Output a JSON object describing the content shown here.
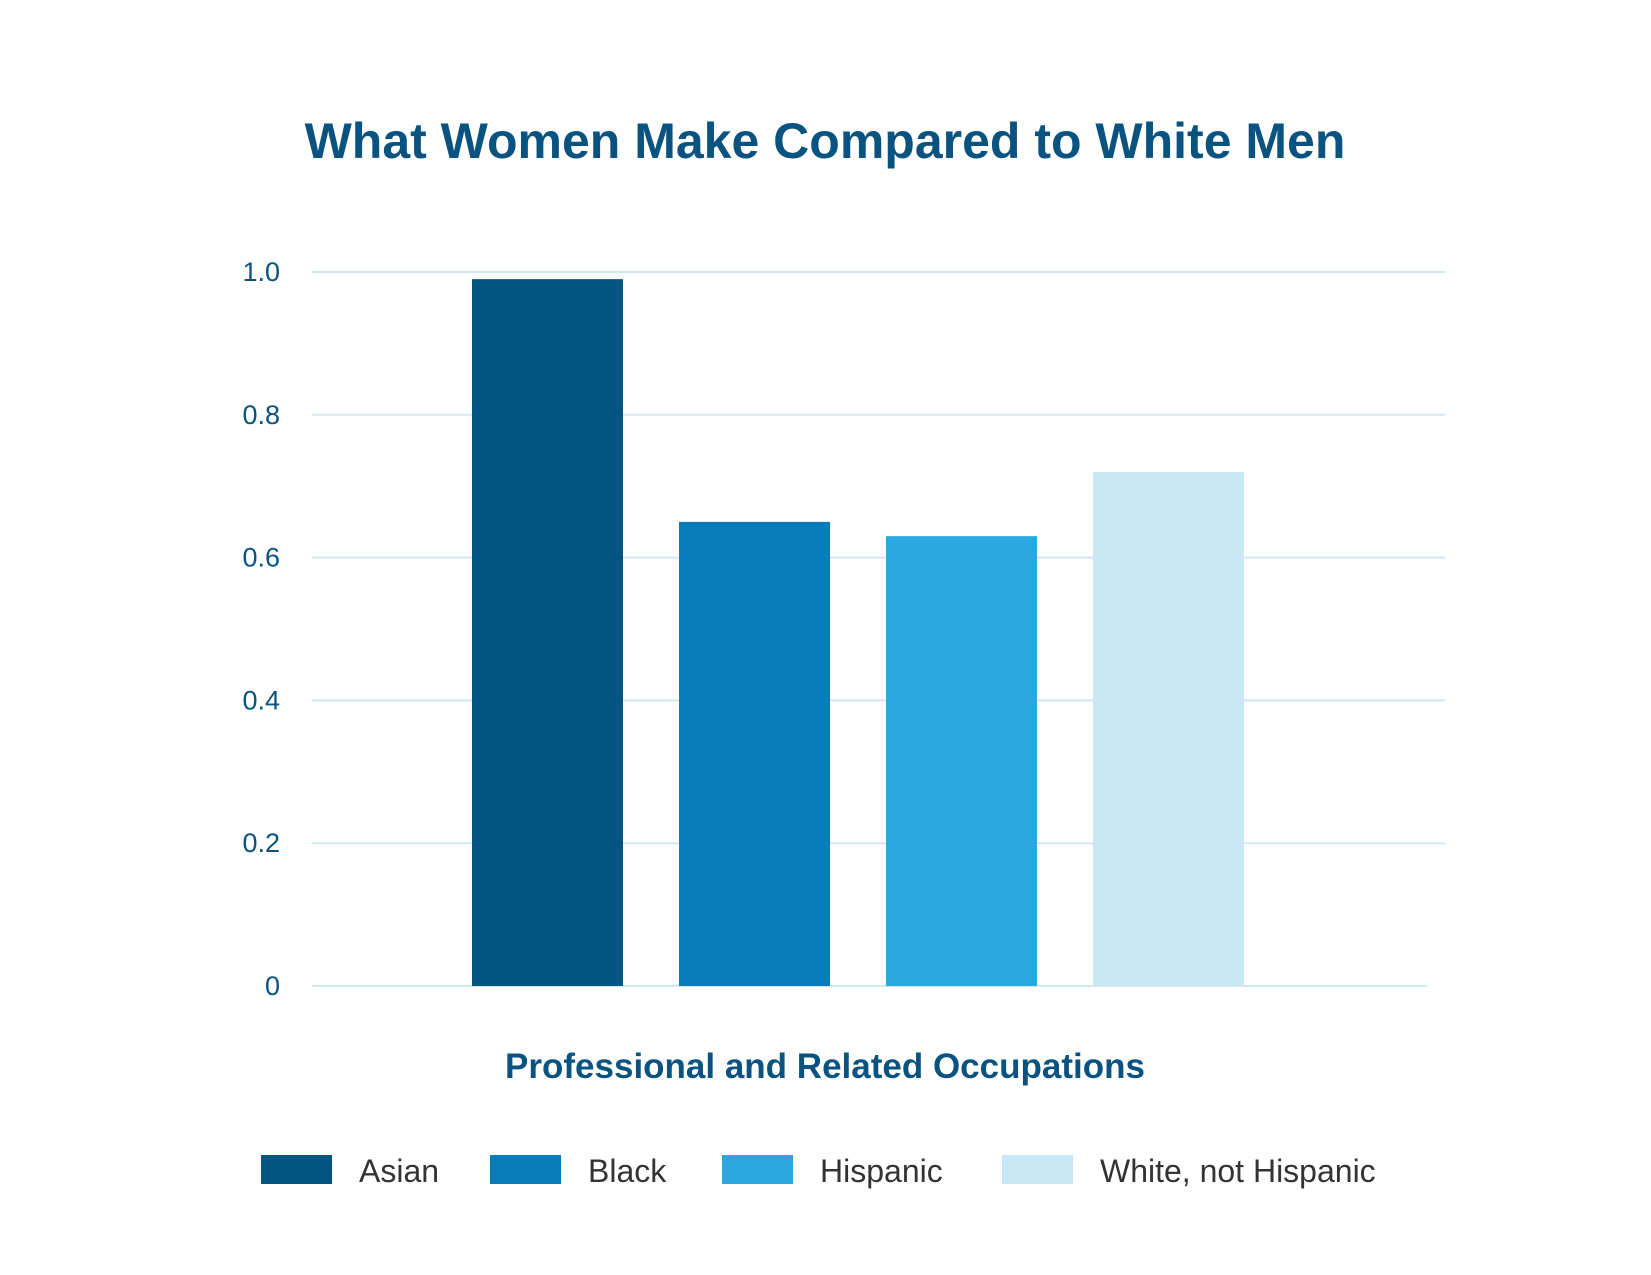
{
  "chart_data": {
    "type": "bar",
    "title": "What Women Make Compared to White Men",
    "xlabel": "Professional and Related Occupations",
    "ylabel": "",
    "ylim": [
      0,
      1.0
    ],
    "yticks": [
      "0",
      "0.2",
      "0.4",
      "0.6",
      "0.8",
      "1.0"
    ],
    "ytick_values": [
      0,
      0.2,
      0.4,
      0.6,
      0.8,
      1.0
    ],
    "grid": true,
    "legend_position": "bottom",
    "categories": [
      "Professional and Related Occupations"
    ],
    "series": [
      {
        "name": "Asian",
        "values": [
          0.99
        ],
        "color": "#025581"
      },
      {
        "name": "Black",
        "values": [
          0.65
        ],
        "color": "#067dba"
      },
      {
        "name": "Hispanic",
        "values": [
          0.63
        ],
        "color": "#2aa8e0"
      },
      {
        "name": "White, not Hispanic",
        "values": [
          0.72
        ],
        "color": "#c8e8f5"
      }
    ]
  }
}
